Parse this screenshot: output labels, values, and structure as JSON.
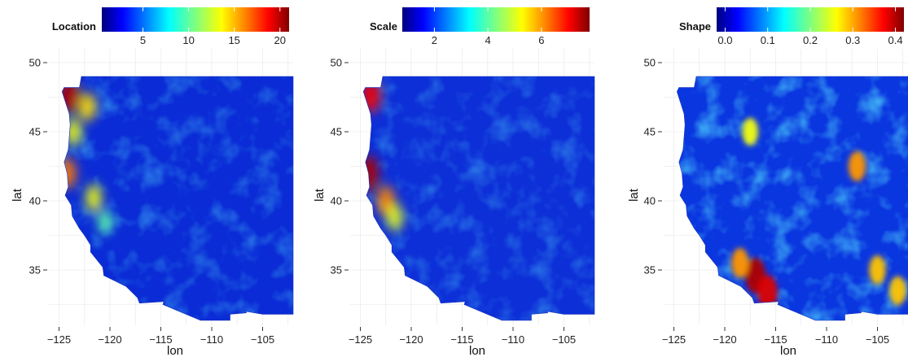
{
  "chart_data": [
    {
      "type": "heatmap",
      "legend_title": "Location",
      "legend_ticks": [
        "5",
        "10",
        "15",
        "20"
      ],
      "legend_tick_values": [
        5,
        10,
        15,
        20
      ],
      "legend_range": [
        0.5,
        21
      ],
      "xlabel": "lon",
      "ylabel": "lat",
      "x_ticks": [
        "−125",
        "−120",
        "−115",
        "−110",
        "−105"
      ],
      "x_tick_values": [
        -125,
        -120,
        -115,
        -110,
        -105
      ],
      "y_ticks": [
        "35",
        "40",
        "45",
        "50"
      ],
      "y_tick_values": [
        35,
        40,
        45,
        50
      ],
      "xlim": [
        -126,
        -102
      ],
      "ylim": [
        31,
        51
      ],
      "colormap": [
        "#00007f",
        "#0000ff",
        "#007fff",
        "#00ffff",
        "#7fff7f",
        "#ffff00",
        "#ff7f00",
        "#ff0000",
        "#7f0000"
      ],
      "grid": "on",
      "field": "low values over most of the region, highs (15-20) along the coastal ranges near lon -124 to -121",
      "hotspots": [
        {
          "lon": -124.0,
          "lat": 47.6,
          "value": 20
        },
        {
          "lon": -122.2,
          "lat": 46.8,
          "value": 14
        },
        {
          "lon": -123.6,
          "lat": 45.0,
          "value": 13
        },
        {
          "lon": -124.2,
          "lat": 42.0,
          "value": 16
        },
        {
          "lon": -121.6,
          "lat": 40.2,
          "value": 13
        },
        {
          "lon": -120.5,
          "lat": 38.5,
          "value": 10
        }
      ]
    },
    {
      "type": "heatmap",
      "legend_title": "Scale",
      "legend_ticks": [
        "2",
        "4",
        "6"
      ],
      "legend_tick_values": [
        2,
        4,
        6
      ],
      "legend_range": [
        0.8,
        7.8
      ],
      "xlabel": "lon",
      "ylabel": "lat",
      "x_ticks": [
        "−125",
        "−120",
        "−115",
        "−110",
        "−105"
      ],
      "x_tick_values": [
        -125,
        -120,
        -115,
        -110,
        -105
      ],
      "y_ticks": [
        "35",
        "40",
        "45",
        "50"
      ],
      "y_tick_values": [
        35,
        40,
        45,
        50
      ],
      "xlim": [
        -126,
        -102
      ],
      "ylim": [
        31,
        51
      ],
      "colormap": [
        "#00007f",
        "#0000ff",
        "#007fff",
        "#00ffff",
        "#7fff7f",
        "#ffff00",
        "#ff7f00",
        "#ff0000",
        "#7f0000"
      ],
      "grid": "on",
      "field": "low values over most of the region, highs (5-7) along the coast near lon -124 to -121",
      "hotspots": [
        {
          "lon": -124.0,
          "lat": 47.6,
          "value": 7
        },
        {
          "lon": -124.2,
          "lat": 42.0,
          "value": 7.5
        },
        {
          "lon": -122.5,
          "lat": 40.0,
          "value": 6
        },
        {
          "lon": -121.6,
          "lat": 38.8,
          "value": 5
        }
      ]
    },
    {
      "type": "heatmap",
      "legend_title": "Shape",
      "legend_ticks": [
        "0.0",
        "0.1",
        "0.2",
        "0.3",
        "0.4"
      ],
      "legend_tick_values": [
        0.0,
        0.1,
        0.2,
        0.3,
        0.4
      ],
      "legend_range": [
        -0.02,
        0.42
      ],
      "xlabel": "lon",
      "ylabel": "lat",
      "x_ticks": [
        "−125",
        "−120",
        "−115",
        "−110",
        "−105"
      ],
      "x_tick_values": [
        -125,
        -120,
        -115,
        -110,
        -105
      ],
      "y_ticks": [
        "35",
        "40",
        "45",
        "50"
      ],
      "y_tick_values": [
        35,
        40,
        45,
        50
      ],
      "xlim": [
        -126,
        -102
      ],
      "ylim": [
        31,
        51
      ],
      "colormap": [
        "#00007f",
        "#0000ff",
        "#007fff",
        "#00ffff",
        "#7fff7f",
        "#ffff00",
        "#ff7f00",
        "#ff0000",
        "#7f0000"
      ],
      "grid": "on",
      "field": "noisy field around 0.1, highest (0.35-0.4) in southern California near lon -117, lat 34",
      "hotspots": [
        {
          "lon": -117.0,
          "lat": 34.6,
          "value": 0.4
        },
        {
          "lon": -115.8,
          "lat": 33.4,
          "value": 0.38
        },
        {
          "lon": -118.5,
          "lat": 35.5,
          "value": 0.3
        },
        {
          "lon": -107.0,
          "lat": 42.5,
          "value": 0.3
        },
        {
          "lon": -105.0,
          "lat": 35.0,
          "value": 0.28
        },
        {
          "lon": -117.5,
          "lat": 45.0,
          "value": 0.25
        },
        {
          "lon": -103.0,
          "lat": 33.5,
          "value": 0.28
        }
      ]
    }
  ]
}
